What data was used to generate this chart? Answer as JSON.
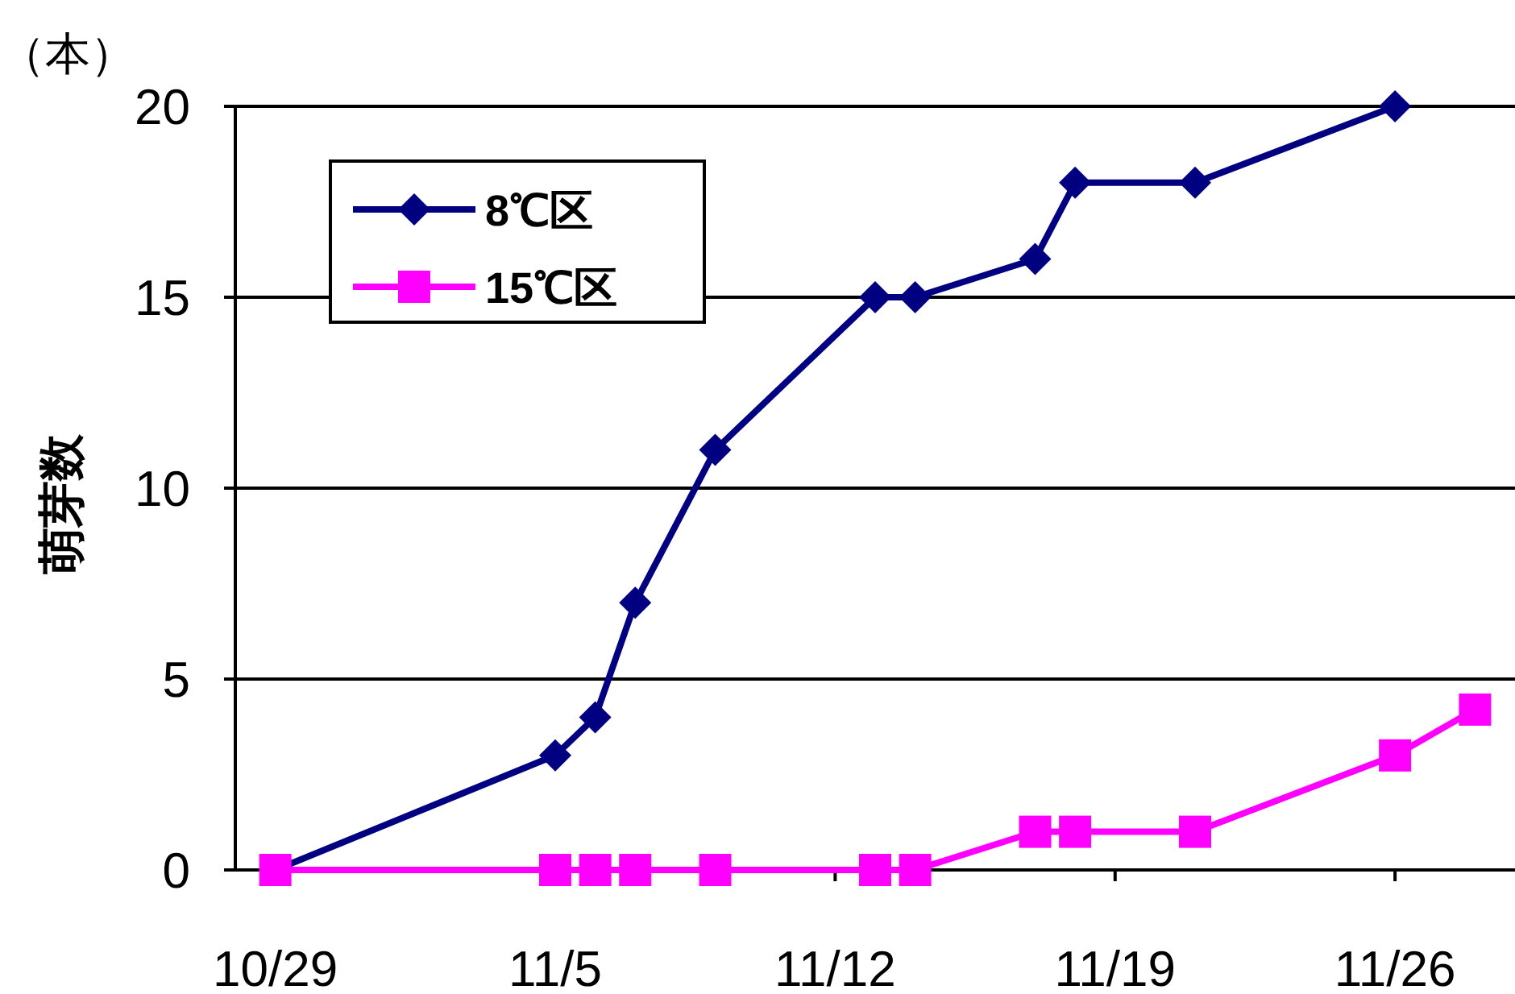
{
  "chart_data": {
    "type": "line",
    "ylabel": "萌芽数",
    "annotations": [
      "（本）"
    ],
    "xlim": [
      "--10-28",
      "--11-29"
    ],
    "xticks": [
      {
        "value": "--10-29",
        "label": "10/29"
      },
      {
        "value": "--11-05",
        "label": "11/5"
      },
      {
        "value": "--11-12",
        "label": "11/12"
      },
      {
        "value": "--11-19",
        "label": "11/19"
      },
      {
        "value": "--11-26",
        "label": "11/26"
      }
    ],
    "ylim": [
      0,
      20
    ],
    "yticks": [
      0,
      5,
      10,
      15,
      20
    ],
    "grid": "y",
    "legend": "top left",
    "series": [
      {
        "name": "8℃区",
        "color": "#000080",
        "marker": "diamond",
        "x": [
          "--10-29",
          "--11-05",
          "--11-06",
          "--11-07",
          "--11-09",
          "--11-13",
          "--11-14",
          "--11-17",
          "--11-18",
          "--11-21",
          "--11-26"
        ],
        "values": [
          0,
          3,
          4,
          7,
          11,
          15,
          15,
          16,
          18,
          18,
          20
        ]
      },
      {
        "name": "15℃区",
        "color": "#ff00ff",
        "marker": "square",
        "x": [
          "--10-29",
          "--11-05",
          "--11-06",
          "--11-07",
          "--11-09",
          "--11-13",
          "--11-14",
          "--11-17",
          "--11-18",
          "--11-21",
          "--11-26",
          "--11-28"
        ],
        "values": [
          0,
          0,
          0,
          0,
          0,
          0,
          0,
          1,
          1,
          1,
          3,
          4.2
        ]
      }
    ]
  }
}
